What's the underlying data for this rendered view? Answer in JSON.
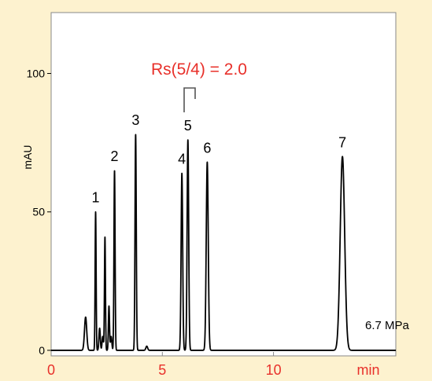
{
  "chart_data": {
    "type": "line",
    "title": "",
    "xlabel": "",
    "ylabel": "mAU",
    "x_unit_label": "min",
    "xlim": [
      0,
      15.5
    ],
    "ylim": [
      -2,
      122
    ],
    "x_ticks": [
      {
        "value": 0,
        "label": "0"
      },
      {
        "value": 5,
        "label": "5"
      },
      {
        "value": 10,
        "label": "10"
      }
    ],
    "y_ticks": [
      {
        "value": 0,
        "label": "0"
      },
      {
        "value": 50,
        "label": "50"
      },
      {
        "value": 100,
        "label": "100"
      }
    ],
    "grid": false,
    "colors": {
      "page_background": "#fdf2cf",
      "plot_background": "#ffffff",
      "trace": "#000000",
      "x_tick_labels": "#e8302a",
      "annotation": "#e8302a",
      "bracket": "#555555"
    },
    "baseline": 0,
    "peaks": [
      {
        "label": "",
        "time": 1.55,
        "height": 12,
        "width": 0.05
      },
      {
        "label": "1",
        "time": 2.0,
        "height": 50,
        "width": 0.022
      },
      {
        "label": "",
        "time": 2.18,
        "height": 8,
        "width": 0.03
      },
      {
        "label": "",
        "time": 2.32,
        "height": 5,
        "width": 0.03
      },
      {
        "label": "",
        "time": 2.42,
        "height": 41,
        "width": 0.022
      },
      {
        "label": "",
        "time": 2.6,
        "height": 16,
        "width": 0.025
      },
      {
        "label": "",
        "time": 2.7,
        "height": 5,
        "width": 0.03
      },
      {
        "label": "2",
        "time": 2.85,
        "height": 65,
        "width": 0.025
      },
      {
        "label": "3",
        "time": 3.8,
        "height": 78,
        "width": 0.028
      },
      {
        "label": "",
        "time": 4.3,
        "height": 1.5,
        "width": 0.04
      },
      {
        "label": "4",
        "time": 5.88,
        "height": 64,
        "width": 0.035
      },
      {
        "label": "5",
        "time": 6.15,
        "height": 76,
        "width": 0.035
      },
      {
        "label": "6",
        "time": 7.02,
        "height": 68,
        "width": 0.045
      },
      {
        "label": "7",
        "time": 13.1,
        "height": 70,
        "width": 0.1
      }
    ],
    "annotation": {
      "text": "Rs(5/4) = 2.0",
      "between": [
        "5",
        "4"
      ]
    },
    "pressure_label": "6.7 MPa"
  }
}
